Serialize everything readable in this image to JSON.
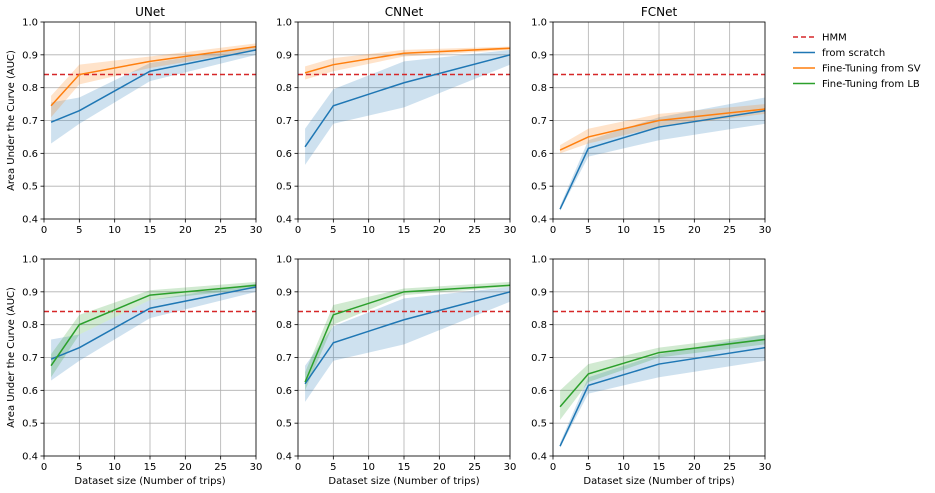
{
  "figure": {
    "colors": {
      "hmm": "#d62728",
      "scratch": "#1f77b4",
      "sv": "#ff7f0e",
      "lb": "#2ca02c",
      "grid": "#b0b0b0"
    }
  },
  "legend": {
    "placement": "outside-right",
    "entries": [
      {
        "label": "HMM",
        "color": "#d62728",
        "dashed": true
      },
      {
        "label": "from scratch",
        "color": "#1f77b4",
        "dashed": false
      },
      {
        "label": "Fine-Tuning from SV",
        "color": "#ff7f0e",
        "dashed": false
      },
      {
        "label": "Fine-Tuning from LB",
        "color": "#2ca02c",
        "dashed": false
      }
    ]
  },
  "chart_data": [
    {
      "type": "line",
      "title": "UNet",
      "xlabel": "",
      "ylabel": "Area Under the Curve (AUC)",
      "x": [
        1,
        5,
        15,
        30
      ],
      "xlim": [
        0,
        30
      ],
      "ylim": [
        0.4,
        1.0
      ],
      "xticks": [
        "0",
        "5",
        "10",
        "15",
        "20",
        "25",
        "30"
      ],
      "yticks": [
        "0.4",
        "0.5",
        "0.6",
        "0.7",
        "0.8",
        "0.9",
        "1.0"
      ],
      "grid": true,
      "hline": 0.84,
      "series": [
        {
          "name": "from scratch",
          "color": "#1f77b4",
          "values": [
            0.695,
            0.73,
            0.85,
            0.915
          ],
          "lower": [
            0.63,
            0.69,
            0.82,
            0.9
          ],
          "upper": [
            0.755,
            0.77,
            0.875,
            0.925
          ]
        },
        {
          "name": "Fine-Tuning from SV",
          "color": "#ff7f0e",
          "values": [
            0.745,
            0.84,
            0.88,
            0.925
          ],
          "lower": [
            0.71,
            0.81,
            0.86,
            0.915
          ],
          "upper": [
            0.775,
            0.87,
            0.895,
            0.935
          ]
        }
      ]
    },
    {
      "type": "line",
      "title": "CNNet",
      "xlabel": "",
      "ylabel": "",
      "x": [
        1,
        5,
        15,
        30
      ],
      "xlim": [
        0,
        30
      ],
      "ylim": [
        0.4,
        1.0
      ],
      "xticks": [
        "0",
        "5",
        "10",
        "15",
        "20",
        "25",
        "30"
      ],
      "yticks": [
        "0.4",
        "0.5",
        "0.6",
        "0.7",
        "0.8",
        "0.9",
        "1.0"
      ],
      "grid": true,
      "hline": 0.84,
      "series": [
        {
          "name": "from scratch",
          "color": "#1f77b4",
          "values": [
            0.62,
            0.745,
            0.815,
            0.9
          ],
          "lower": [
            0.565,
            0.69,
            0.74,
            0.87
          ],
          "upper": [
            0.675,
            0.795,
            0.88,
            0.915
          ]
        },
        {
          "name": "Fine-Tuning from SV",
          "color": "#ff7f0e",
          "values": [
            0.845,
            0.87,
            0.905,
            0.92
          ],
          "lower": [
            0.825,
            0.85,
            0.895,
            0.915
          ],
          "upper": [
            0.865,
            0.89,
            0.915,
            0.925
          ]
        }
      ]
    },
    {
      "type": "line",
      "title": "FCNet",
      "xlabel": "",
      "ylabel": "",
      "x": [
        1,
        5,
        15,
        30
      ],
      "xlim": [
        0,
        30
      ],
      "ylim": [
        0.4,
        1.0
      ],
      "xticks": [
        "0",
        "5",
        "10",
        "15",
        "20",
        "25",
        "30"
      ],
      "yticks": [
        "0.4",
        "0.5",
        "0.6",
        "0.7",
        "0.8",
        "0.9",
        "1.0"
      ],
      "grid": true,
      "hline": 0.84,
      "series": [
        {
          "name": "from scratch",
          "color": "#1f77b4",
          "values": [
            0.43,
            0.615,
            0.68,
            0.73
          ],
          "lower": [
            0.425,
            0.59,
            0.64,
            0.69
          ],
          "upper": [
            0.44,
            0.64,
            0.71,
            0.77
          ]
        },
        {
          "name": "Fine-Tuning from SV",
          "color": "#ff7f0e",
          "values": [
            0.61,
            0.65,
            0.7,
            0.735
          ],
          "lower": [
            0.6,
            0.63,
            0.68,
            0.72
          ],
          "upper": [
            0.625,
            0.675,
            0.72,
            0.75
          ]
        }
      ]
    },
    {
      "type": "line",
      "title": "",
      "xlabel": "Dataset size (Number of trips)",
      "ylabel": "Area Under the Curve (AUC)",
      "x": [
        1,
        5,
        15,
        30
      ],
      "xlim": [
        0,
        30
      ],
      "ylim": [
        0.4,
        1.0
      ],
      "xticks": [
        "0",
        "5",
        "10",
        "15",
        "20",
        "25",
        "30"
      ],
      "yticks": [
        "0.4",
        "0.5",
        "0.6",
        "0.7",
        "0.8",
        "0.9",
        "1.0"
      ],
      "grid": true,
      "hline": 0.84,
      "series": [
        {
          "name": "from scratch",
          "color": "#1f77b4",
          "values": [
            0.695,
            0.73,
            0.85,
            0.915
          ],
          "lower": [
            0.63,
            0.69,
            0.82,
            0.9
          ],
          "upper": [
            0.755,
            0.77,
            0.875,
            0.925
          ]
        },
        {
          "name": "Fine-Tuning from LB",
          "color": "#2ca02c",
          "values": [
            0.675,
            0.8,
            0.89,
            0.92
          ],
          "lower": [
            0.64,
            0.77,
            0.875,
            0.91
          ],
          "upper": [
            0.71,
            0.83,
            0.905,
            0.93
          ]
        }
      ]
    },
    {
      "type": "line",
      "title": "",
      "xlabel": "Dataset size (Number of trips)",
      "ylabel": "",
      "x": [
        1,
        5,
        15,
        30
      ],
      "xlim": [
        0,
        30
      ],
      "ylim": [
        0.4,
        1.0
      ],
      "xticks": [
        "0",
        "5",
        "10",
        "15",
        "20",
        "25",
        "30"
      ],
      "yticks": [
        "0.4",
        "0.5",
        "0.6",
        "0.7",
        "0.8",
        "0.9",
        "1.0"
      ],
      "grid": true,
      "hline": 0.84,
      "series": [
        {
          "name": "from scratch",
          "color": "#1f77b4",
          "values": [
            0.62,
            0.745,
            0.815,
            0.9
          ],
          "lower": [
            0.565,
            0.69,
            0.74,
            0.87
          ],
          "upper": [
            0.675,
            0.795,
            0.88,
            0.915
          ]
        },
        {
          "name": "Fine-Tuning from LB",
          "color": "#2ca02c",
          "values": [
            0.625,
            0.83,
            0.9,
            0.92
          ],
          "lower": [
            0.6,
            0.8,
            0.89,
            0.915
          ],
          "upper": [
            0.655,
            0.86,
            0.91,
            0.93
          ]
        }
      ]
    },
    {
      "type": "line",
      "title": "",
      "xlabel": "Dataset size (Number of trips)",
      "ylabel": "",
      "x": [
        1,
        5,
        15,
        30
      ],
      "xlim": [
        0,
        30
      ],
      "ylim": [
        0.4,
        1.0
      ],
      "xticks": [
        "0",
        "5",
        "10",
        "15",
        "20",
        "25",
        "30"
      ],
      "yticks": [
        "0.4",
        "0.5",
        "0.6",
        "0.7",
        "0.8",
        "0.9",
        "1.0"
      ],
      "grid": true,
      "hline": 0.84,
      "series": [
        {
          "name": "from scratch",
          "color": "#1f77b4",
          "values": [
            0.43,
            0.615,
            0.68,
            0.73
          ],
          "lower": [
            0.425,
            0.59,
            0.64,
            0.69
          ],
          "upper": [
            0.44,
            0.64,
            0.71,
            0.77
          ]
        },
        {
          "name": "Fine-Tuning from LB",
          "color": "#2ca02c",
          "values": [
            0.55,
            0.65,
            0.715,
            0.755
          ],
          "lower": [
            0.51,
            0.625,
            0.7,
            0.74
          ],
          "upper": [
            0.6,
            0.68,
            0.73,
            0.77
          ]
        }
      ]
    }
  ]
}
